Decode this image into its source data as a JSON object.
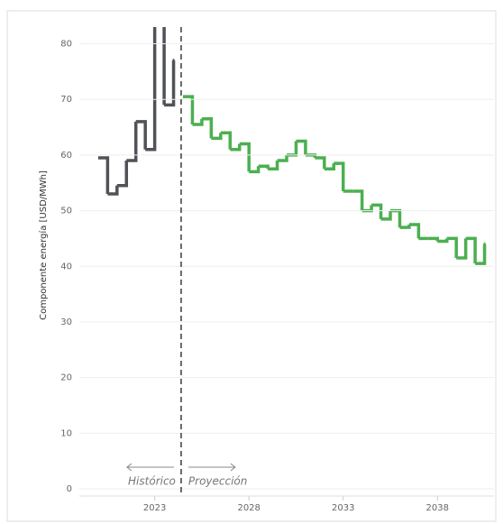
{
  "chart_data": {
    "type": "step",
    "y_label": "Componente energía [USD/MWh]",
    "xlim": [
      2019,
      2041
    ],
    "xticks": [
      2023,
      2028,
      2033,
      2038
    ],
    "ylim": [
      0,
      83
    ],
    "yticks": [
      0,
      10,
      20,
      30,
      40,
      50,
      60,
      70,
      80
    ],
    "grid": true,
    "divider_x": 2024.4,
    "annotations": [
      "Histórico",
      "Proyección"
    ],
    "series": [
      {
        "color": "#505257",
        "x": [
          2020,
          2020.5,
          2021,
          2021.5,
          2022,
          2022.5,
          2023,
          2023.5,
          2024
        ],
        "values": [
          59.5,
          53,
          54.5,
          59,
          66,
          61,
          90,
          69,
          77
        ]
      },
      {
        "color": "#4caf50",
        "x": [
          2024.5,
          2025,
          2025.5,
          2026,
          2026.5,
          2027,
          2027.5,
          2028,
          2028.5,
          2029,
          2029.5,
          2030,
          2030.5,
          2031,
          2031.5,
          2032,
          2032.5,
          2033,
          2033.5,
          2034,
          2034.5,
          2035,
          2035.5,
          2036,
          2036.5,
          2037,
          2037.5,
          2038,
          2038.5,
          2039,
          2039.5,
          2040,
          2040.5
        ],
        "values": [
          70.5,
          65.5,
          66.5,
          63,
          64,
          61,
          62,
          57,
          58,
          57.5,
          59,
          60,
          62.5,
          60,
          59.5,
          57.5,
          58.5,
          53.5,
          53.5,
          50,
          51,
          48.5,
          50,
          47,
          47.5,
          45,
          45,
          44.5,
          45,
          41.5,
          45,
          40.5,
          44
        ]
      }
    ]
  }
}
